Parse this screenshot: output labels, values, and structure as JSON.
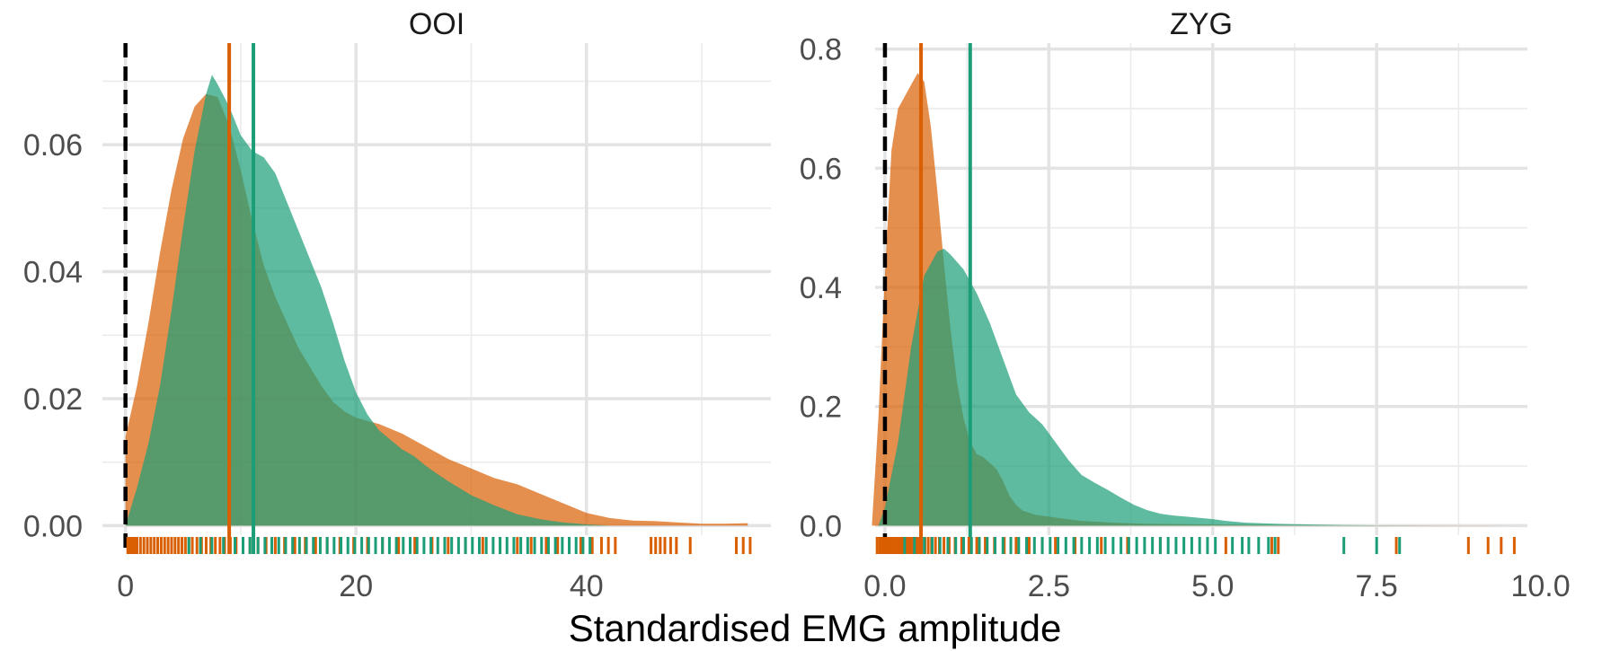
{
  "chart_data": {
    "type": "area",
    "xlabel": "Standardised EMG amplitude",
    "ylabel": "",
    "legend": "none",
    "grid": true,
    "colors": {
      "orange": "#D95F02",
      "green": "#1B9E77",
      "zero_line": "#000000"
    },
    "panels": [
      {
        "title": "OOI",
        "xlim": [
          -2,
          56
        ],
        "ylim": [
          -0.0015,
          0.076
        ],
        "x_ticks": [
          0,
          20,
          40
        ],
        "x_tick_labels": [
          "0",
          "20",
          "40"
        ],
        "y_ticks": [
          0,
          0.02,
          0.04,
          0.06
        ],
        "y_tick_labels": [
          "0.00",
          "0.02",
          "0.04",
          "0.06"
        ],
        "zero_line_x": 0,
        "series": [
          {
            "color": "orange",
            "mean_line_x": 9.0,
            "density": [
              [
                0,
                0.014
              ],
              [
                1,
                0.022
              ],
              [
                2,
                0.032
              ],
              [
                3,
                0.043
              ],
              [
                4,
                0.053
              ],
              [
                5,
                0.061
              ],
              [
                6,
                0.066
              ],
              [
                7,
                0.068
              ],
              [
                8,
                0.0675
              ],
              [
                9,
                0.063
              ],
              [
                10,
                0.056
              ],
              [
                11,
                0.048
              ],
              [
                12,
                0.041
              ],
              [
                13,
                0.036
              ],
              [
                14,
                0.032
              ],
              [
                15,
                0.028
              ],
              [
                16,
                0.025
              ],
              [
                17,
                0.022
              ],
              [
                18,
                0.0195
              ],
              [
                19,
                0.018
              ],
              [
                20,
                0.017
              ],
              [
                21,
                0.0165
              ],
              [
                22,
                0.016
              ],
              [
                24,
                0.0145
              ],
              [
                26,
                0.0125
              ],
              [
                28,
                0.0105
              ],
              [
                30,
                0.009
              ],
              [
                32,
                0.0075
              ],
              [
                34,
                0.0065
              ],
              [
                36,
                0.005
              ],
              [
                38,
                0.0035
              ],
              [
                40,
                0.002
              ],
              [
                42,
                0.0012
              ],
              [
                44,
                0.0008
              ],
              [
                46,
                0.0007
              ],
              [
                48,
                0.0005
              ],
              [
                50,
                0.0003
              ],
              [
                52,
                0.0003
              ],
              [
                54,
                0.0004
              ]
            ],
            "rug": [
              0.2,
              0.4,
              0.6,
              0.8,
              1.0,
              1.3,
              1.6,
              1.9,
              2.2,
              2.5,
              2.8,
              3.1,
              3.4,
              3.7,
              4.0,
              4.3,
              4.6,
              4.9,
              5.2,
              5.5,
              5.8,
              6.2,
              6.6,
              7.0,
              7.4,
              7.8,
              8.2,
              8.6,
              9.1,
              9.6,
              10.2,
              10.8,
              11.5,
              12.2,
              13.0,
              13.8,
              14.7,
              15.6,
              16.5,
              17.5,
              18.6,
              19.8,
              21.0,
              22.3,
              23.7,
              25.1,
              26.6,
              28.0,
              29.5,
              31.0,
              32.5,
              34.0,
              35.2,
              36.5,
              37.5,
              38.5,
              39.5,
              40.5,
              41.3,
              41.9,
              42.5,
              45.6,
              46.0,
              46.4,
              46.8,
              47.3,
              47.8,
              49.0,
              53.0,
              53.6,
              54.2
            ]
          },
          {
            "color": "green",
            "mean_line_x": 11.1,
            "density": [
              [
                0,
                0.0
              ],
              [
                1,
                0.006
              ],
              [
                2,
                0.013
              ],
              [
                3,
                0.022
              ],
              [
                4,
                0.034
              ],
              [
                5,
                0.047
              ],
              [
                6,
                0.059
              ],
              [
                7,
                0.068
              ],
              [
                7.5,
                0.071
              ],
              [
                8,
                0.0695
              ],
              [
                9,
                0.066
              ],
              [
                10,
                0.0615
              ],
              [
                11,
                0.059
              ],
              [
                12,
                0.058
              ],
              [
                13,
                0.0555
              ],
              [
                14,
                0.051
              ],
              [
                15,
                0.0465
              ],
              [
                16,
                0.042
              ],
              [
                17,
                0.0375
              ],
              [
                18,
                0.032
              ],
              [
                19,
                0.026
              ],
              [
                20,
                0.021
              ],
              [
                21,
                0.0175
              ],
              [
                22,
                0.015
              ],
              [
                23,
                0.0135
              ],
              [
                24,
                0.012
              ],
              [
                25,
                0.011
              ],
              [
                26,
                0.0095
              ],
              [
                27,
                0.0082
              ],
              [
                28,
                0.007
              ],
              [
                30,
                0.0048
              ],
              [
                32,
                0.0032
              ],
              [
                34,
                0.0018
              ],
              [
                36,
                0.001
              ],
              [
                38,
                0.0005
              ],
              [
                40,
                0.0002
              ],
              [
                42,
                0.0
              ]
            ],
            "rug": [
              5.5,
              6.5,
              7.5,
              8.5,
              9.5,
              10.2,
              10.8,
              11.5,
              12.1,
              12.7,
              13.3,
              13.9,
              14.5,
              15.1,
              15.7,
              16.3,
              16.9,
              17.5,
              18.1,
              18.7,
              19.3,
              19.9,
              20.5,
              21.1,
              21.7,
              22.3,
              22.9,
              23.5,
              24.1,
              24.7,
              25.3,
              25.9,
              26.5,
              27.1,
              27.7,
              28.3,
              28.9,
              29.5,
              30.1,
              30.7,
              31.3,
              31.9,
              32.5,
              33.1,
              33.7,
              34.3,
              34.9,
              35.5,
              36.1,
              36.7,
              37.3,
              37.9,
              38.5,
              39.1,
              39.7,
              40.3
            ]
          }
        ]
      },
      {
        "title": "ZYG",
        "xlim": [
          -0.15,
          9.8
        ],
        "ylim": [
          -0.016,
          0.81
        ],
        "x_ticks": [
          0,
          2.5,
          5,
          7.5,
          10
        ],
        "x_tick_labels": [
          "0.0",
          "2.5",
          "5.0",
          "7.5",
          "10.0"
        ],
        "y_ticks": [
          0,
          0.2,
          0.4,
          0.6,
          0.8
        ],
        "y_tick_labels": [
          "0.0",
          "0.2",
          "0.4",
          "0.6",
          "0.8"
        ],
        "zero_line_x": 0,
        "series": [
          {
            "color": "orange",
            "mean_line_x": 0.55,
            "density": [
              [
                -0.2,
                0.0
              ],
              [
                -0.1,
                0.18
              ],
              [
                0.0,
                0.42
              ],
              [
                0.1,
                0.63
              ],
              [
                0.2,
                0.7
              ],
              [
                0.3,
                0.72
              ],
              [
                0.4,
                0.74
              ],
              [
                0.5,
                0.76
              ],
              [
                0.6,
                0.745
              ],
              [
                0.7,
                0.67
              ],
              [
                0.8,
                0.56
              ],
              [
                0.9,
                0.44
              ],
              [
                1.0,
                0.33
              ],
              [
                1.1,
                0.24
              ],
              [
                1.2,
                0.18
              ],
              [
                1.3,
                0.14
              ],
              [
                1.4,
                0.12
              ],
              [
                1.5,
                0.115
              ],
              [
                1.6,
                0.105
              ],
              [
                1.7,
                0.095
              ],
              [
                1.8,
                0.075
              ],
              [
                1.9,
                0.05
              ],
              [
                2.0,
                0.035
              ],
              [
                2.1,
                0.025
              ],
              [
                2.3,
                0.018
              ],
              [
                2.5,
                0.015
              ],
              [
                2.7,
                0.012
              ],
              [
                3.0,
                0.008
              ],
              [
                3.5,
                0.005
              ],
              [
                4.0,
                0.003
              ],
              [
                5.0,
                0.002
              ],
              [
                6.0,
                0.001
              ],
              [
                7.0,
                0.0005
              ],
              [
                8.0,
                0.0004
              ],
              [
                9.0,
                0.0003
              ],
              [
                9.6,
                0.0
              ]
            ],
            "rug": [
              -0.12,
              -0.08,
              -0.05,
              -0.02,
              0.01,
              0.04,
              0.07,
              0.1,
              0.13,
              0.16,
              0.19,
              0.22,
              0.25,
              0.28,
              0.31,
              0.34,
              0.37,
              0.4,
              0.44,
              0.48,
              0.52,
              0.56,
              0.61,
              0.66,
              0.71,
              0.77,
              0.83,
              0.9,
              0.98,
              1.07,
              1.17,
              1.28,
              1.4,
              1.53,
              1.67,
              1.82,
              2.0,
              2.2,
              2.4,
              2.6,
              2.9,
              3.3,
              3.7,
              4.2,
              5.2,
              5.9,
              6.0,
              7.8,
              8.9,
              9.2,
              9.4,
              9.6
            ]
          },
          {
            "color": "green",
            "mean_line_x": 1.3,
            "density": [
              [
                -0.1,
                0.0
              ],
              [
                0.0,
                0.03
              ],
              [
                0.2,
                0.14
              ],
              [
                0.4,
                0.3
              ],
              [
                0.6,
                0.42
              ],
              [
                0.8,
                0.46
              ],
              [
                0.9,
                0.465
              ],
              [
                1.0,
                0.455
              ],
              [
                1.2,
                0.43
              ],
              [
                1.4,
                0.39
              ],
              [
                1.6,
                0.34
              ],
              [
                1.8,
                0.28
              ],
              [
                2.0,
                0.22
              ],
              [
                2.2,
                0.19
              ],
              [
                2.4,
                0.17
              ],
              [
                2.6,
                0.14
              ],
              [
                2.8,
                0.11
              ],
              [
                3.0,
                0.085
              ],
              [
                3.2,
                0.072
              ],
              [
                3.4,
                0.06
              ],
              [
                3.6,
                0.047
              ],
              [
                3.8,
                0.035
              ],
              [
                4.0,
                0.026
              ],
              [
                4.2,
                0.02
              ],
              [
                4.4,
                0.017
              ],
              [
                4.6,
                0.015
              ],
              [
                4.8,
                0.013
              ],
              [
                5.0,
                0.011
              ],
              [
                5.2,
                0.008
              ],
              [
                5.5,
                0.005
              ],
              [
                6.0,
                0.003
              ],
              [
                6.5,
                0.002
              ],
              [
                7.0,
                0.001
              ],
              [
                7.5,
                0.0005
              ],
              [
                8.0,
                0.0002
              ],
              [
                8.5,
                0.0
              ]
            ],
            "rug": [
              0.3,
              0.45,
              0.6,
              0.72,
              0.84,
              0.96,
              1.08,
              1.2,
              1.32,
              1.44,
              1.56,
              1.68,
              1.8,
              1.92,
              2.04,
              2.16,
              2.28,
              2.4,
              2.52,
              2.64,
              2.76,
              2.88,
              3.0,
              3.12,
              3.24,
              3.36,
              3.48,
              3.6,
              3.72,
              3.84,
              3.96,
              4.08,
              4.2,
              4.32,
              4.44,
              4.56,
              4.68,
              4.8,
              4.92,
              5.04,
              5.3,
              5.45,
              5.55,
              5.7,
              5.85,
              5.95,
              7.0,
              7.5,
              7.85
            ]
          }
        ]
      }
    ]
  }
}
